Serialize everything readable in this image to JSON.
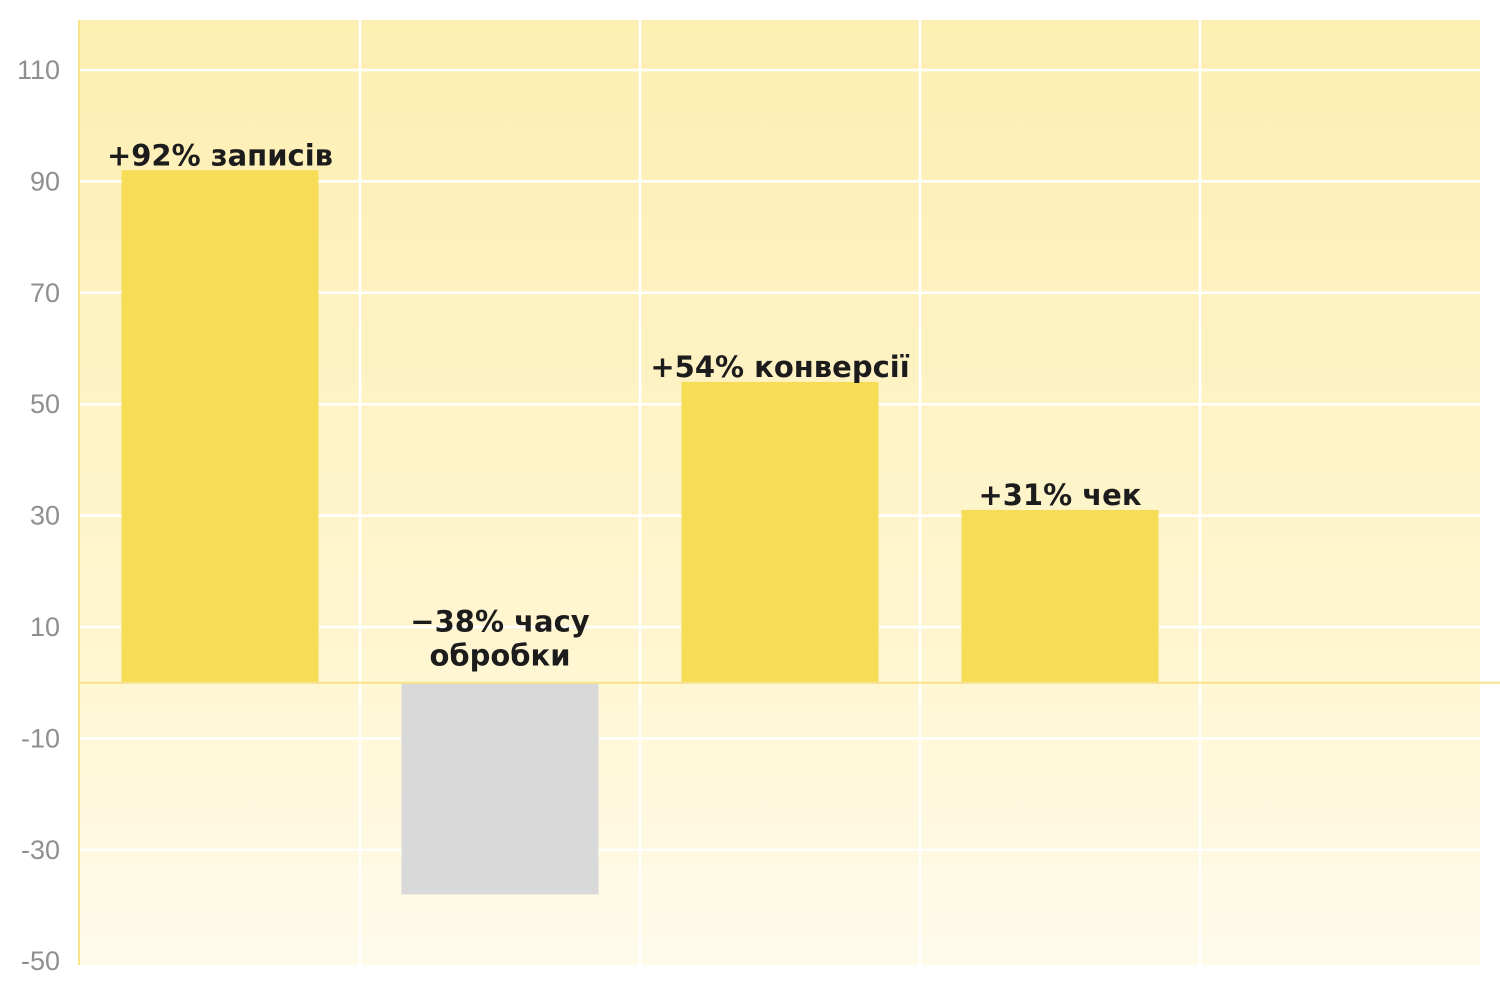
{
  "chart_data": {
    "type": "bar",
    "categories": [
      "записів",
      "часу обробки",
      "конверсії",
      "чек"
    ],
    "values": [
      92,
      -38,
      54,
      31
    ],
    "data_labels": [
      [
        "+92% записів"
      ],
      [
        "−38% часу",
        "обробки"
      ],
      [
        "+54% конверсії"
      ],
      [
        "+31% чек"
      ]
    ],
    "ylim": [
      -50,
      120
    ],
    "yticks": [
      110,
      90,
      70,
      50,
      30,
      10,
      -10,
      -30,
      -50
    ],
    "ytick_labels": [
      "110",
      "90",
      "70",
      "50",
      "30",
      "10",
      "-10",
      "-30",
      "-50"
    ],
    "grid": true,
    "legend": "none",
    "colors": {
      "positive_bar": "#f7dc56",
      "negative_bar": "#d9d9d9",
      "background_top": "#fdeeb2",
      "background_bottom": "#fffbeb",
      "axis": "#f7e48a",
      "gridline": "#ffffff"
    }
  }
}
